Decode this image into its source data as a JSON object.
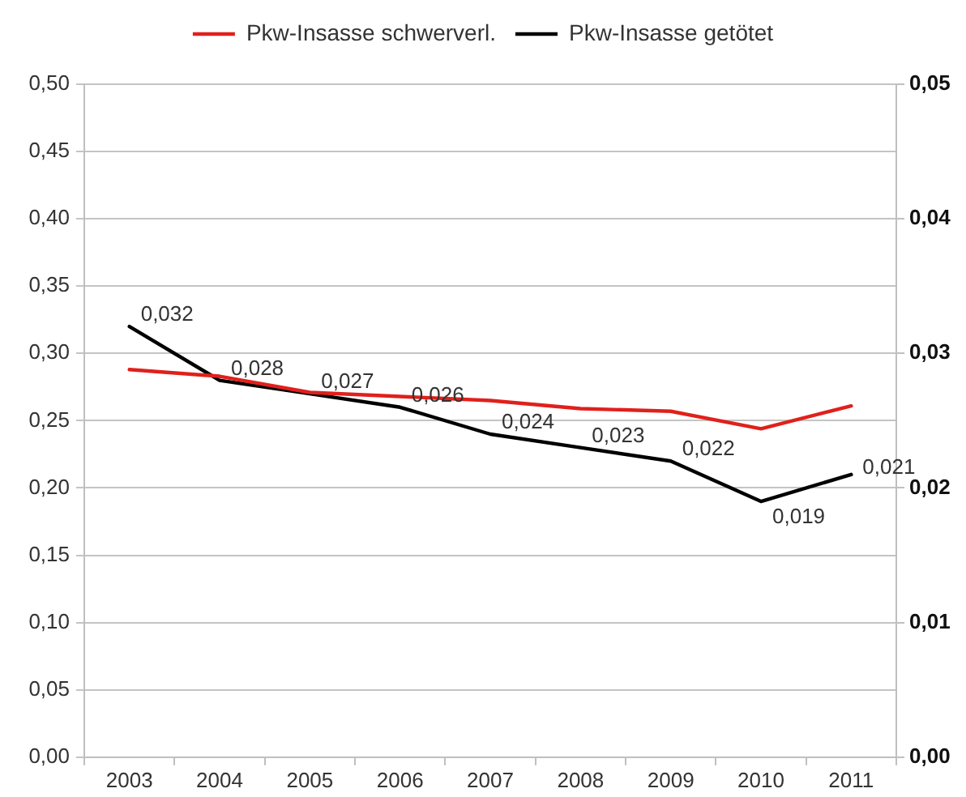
{
  "chart_data": {
    "type": "line",
    "categories": [
      "2003",
      "2004",
      "2005",
      "2006",
      "2007",
      "2008",
      "2009",
      "2010",
      "2011"
    ],
    "series": [
      {
        "name": "Pkw-Insasse schwerverl.",
        "color": "#e0201c",
        "values": [
          0.288,
          0.283,
          0.271,
          0.268,
          0.265,
          0.259,
          0.257,
          0.244,
          0.261
        ]
      },
      {
        "name": "Pkw-Insasse getötet",
        "color": "#000000",
        "axis": "y2",
        "values": [
          0.032,
          0.028,
          0.027,
          0.026,
          0.024,
          0.023,
          0.022,
          0.019,
          0.021
        ],
        "value_labels": [
          "0,032",
          "0,028",
          "0,027",
          "0,026",
          "0,024",
          "0,023",
          "0,022",
          "0,019",
          "0,021"
        ]
      }
    ],
    "ylim": [
      0,
      0.5
    ],
    "yticks": [
      {
        "value": 0,
        "label": "0,00"
      },
      {
        "value": 0.05,
        "label": "0,05"
      },
      {
        "value": 0.1,
        "label": "0,10"
      },
      {
        "value": 0.15,
        "label": "0,15"
      },
      {
        "value": 0.2,
        "label": "0,20"
      },
      {
        "value": 0.25,
        "label": "0,25"
      },
      {
        "value": 0.3,
        "label": "0,30"
      },
      {
        "value": 0.35,
        "label": "0,35"
      },
      {
        "value": 0.4,
        "label": "0,40"
      },
      {
        "value": 0.45,
        "label": "0,45"
      },
      {
        "value": 0.5,
        "label": "0,50"
      }
    ],
    "y2lim": [
      0,
      0.05
    ],
    "y2ticks": [
      {
        "value": 0,
        "label": "0,00"
      },
      {
        "value": 0.01,
        "label": "0,01"
      },
      {
        "value": 0.02,
        "label": "0,02"
      },
      {
        "value": 0.03,
        "label": "0,03"
      },
      {
        "value": 0.04,
        "label": "0,04"
      },
      {
        "value": 0.05,
        "label": "0,05"
      }
    ],
    "grid": "y",
    "legend": "top",
    "marker": "none"
  }
}
